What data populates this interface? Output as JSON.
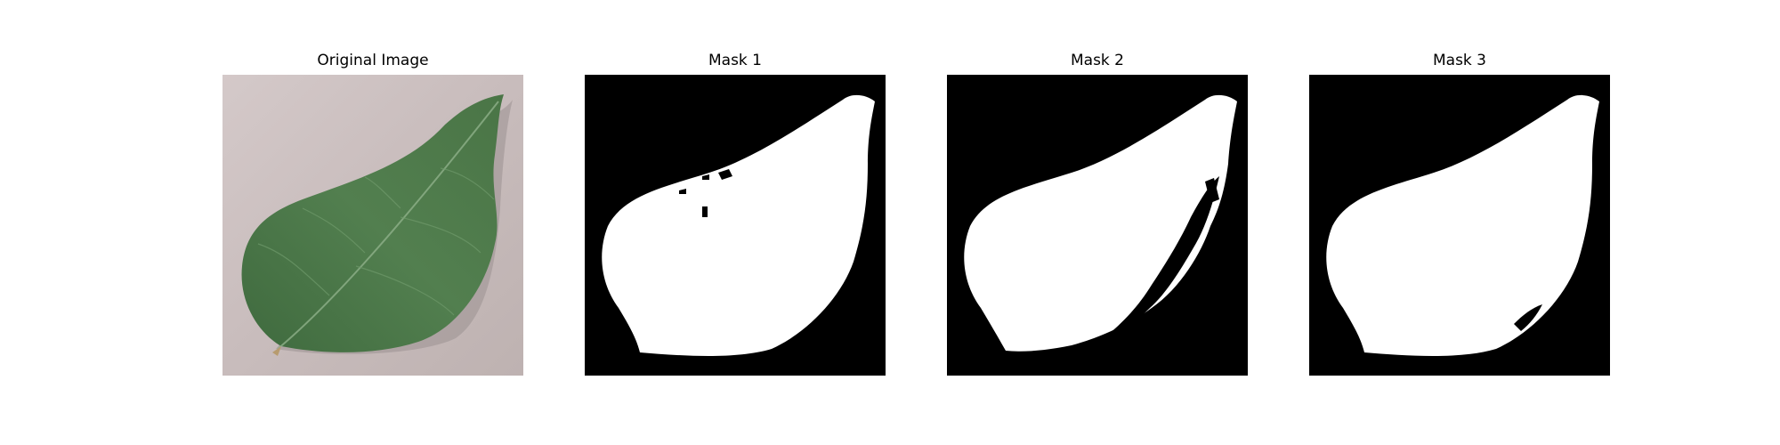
{
  "figure": {
    "panels": [
      {
        "title": "Original Image"
      },
      {
        "title": "Mask 1"
      },
      {
        "title": "Mask 2"
      },
      {
        "title": "Mask 3"
      }
    ]
  },
  "colors": {
    "background": "#ffffff",
    "mask_background": "#000000",
    "mask_foreground": "#ffffff",
    "surface": "#c9bdbd",
    "leaf": "#4f7a4d"
  }
}
